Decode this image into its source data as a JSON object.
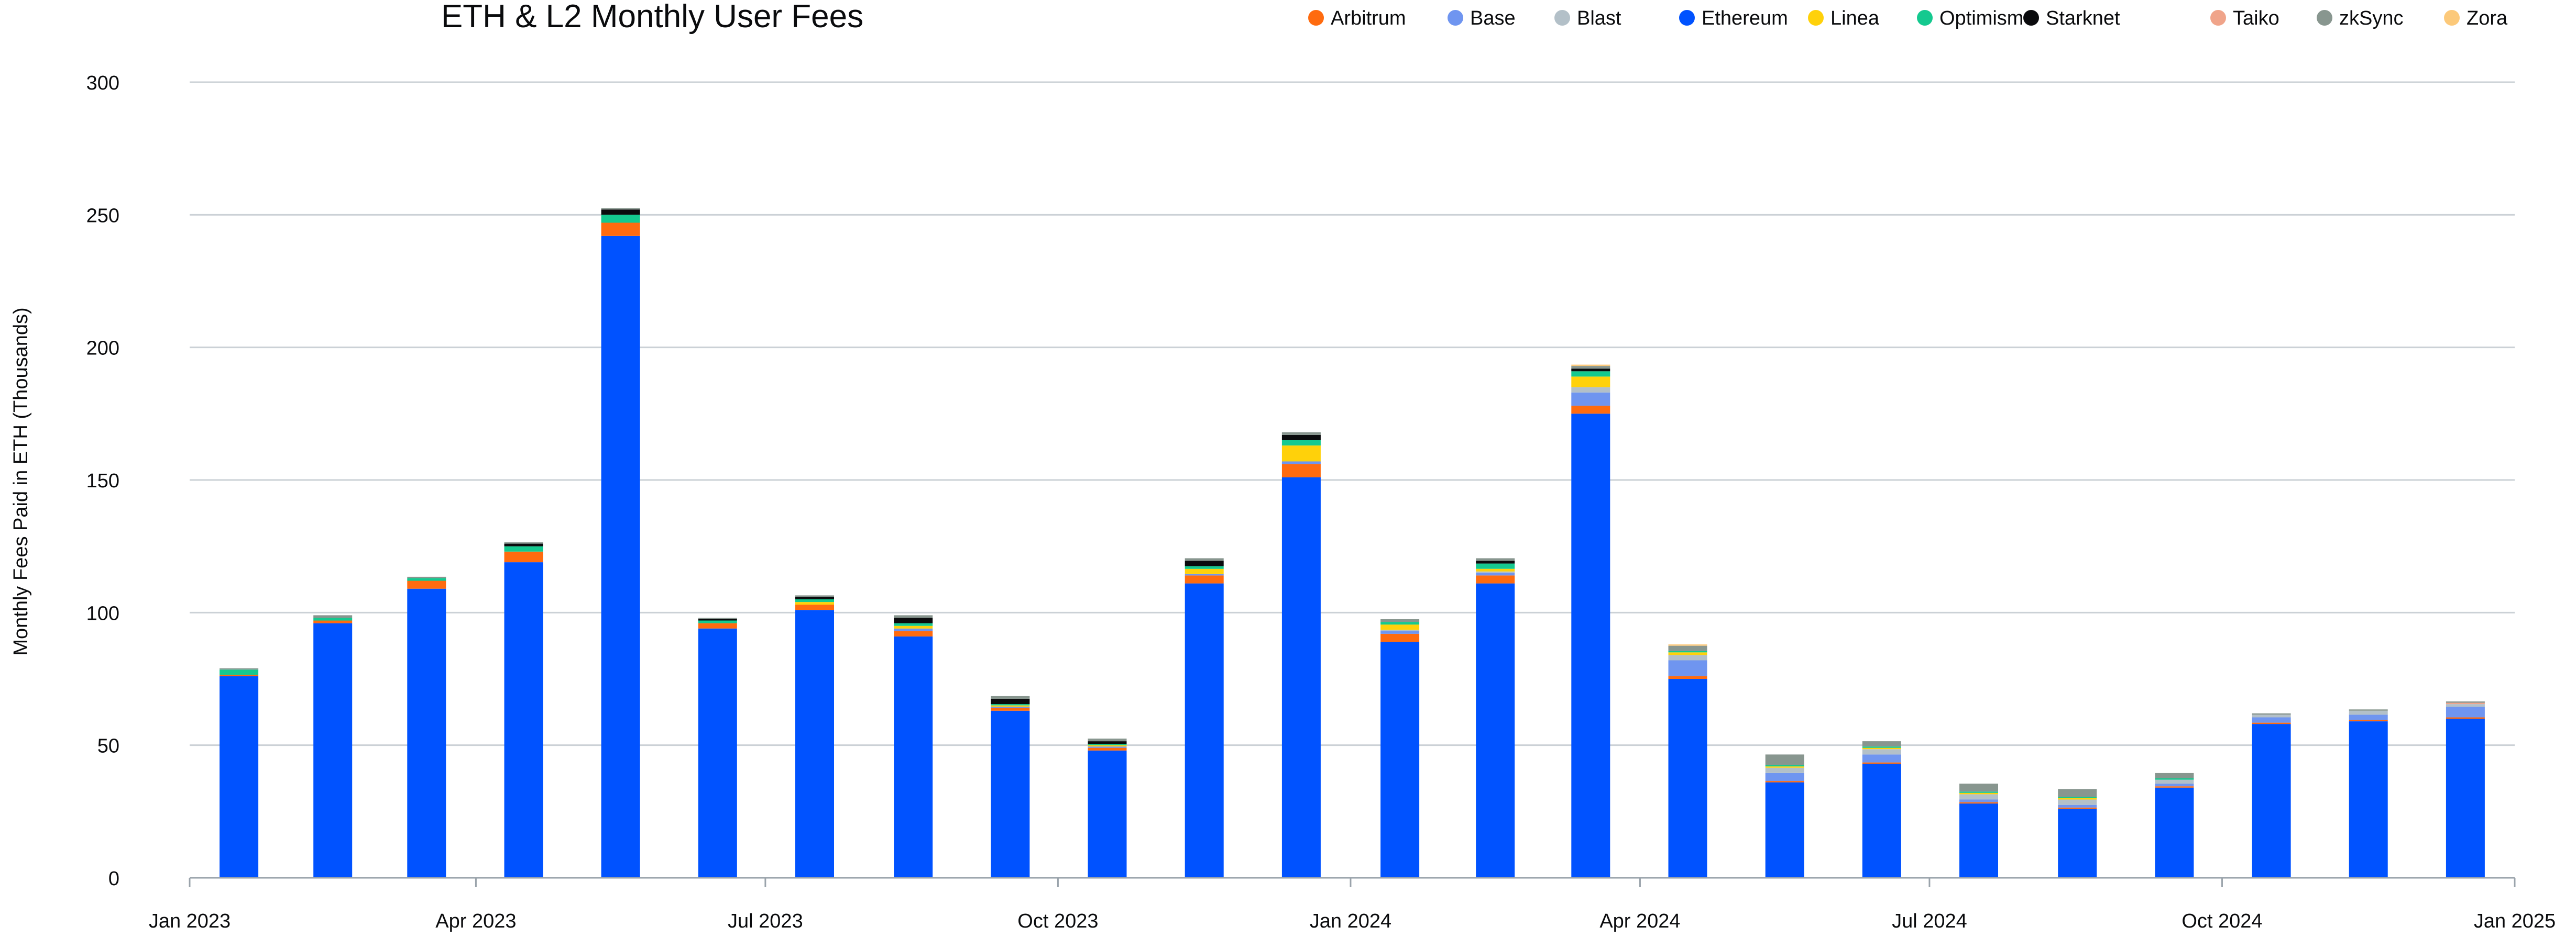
{
  "chart_data": {
    "type": "bar",
    "stacked": true,
    "title": "ETH & L2 Monthly User Fees",
    "ylabel": "Monthly Fees Paid in ETH (Thousands)",
    "xlabel": "",
    "ylim": [
      0,
      300
    ],
    "yticks": [
      0,
      50,
      100,
      150,
      200,
      250,
      300
    ],
    "xlim": [
      "2023-01-01",
      "2025-01-01"
    ],
    "xticks": [
      {
        "date": "2023-01-01",
        "label": "Jan 2023"
      },
      {
        "date": "2023-04-01",
        "label": "Apr 2023"
      },
      {
        "date": "2023-07-01",
        "label": "Jul 2023"
      },
      {
        "date": "2023-10-01",
        "label": "Oct 2023"
      },
      {
        "date": "2024-01-01",
        "label": "Jan 2024"
      },
      {
        "date": "2024-04-01",
        "label": "Apr 2024"
      },
      {
        "date": "2024-07-01",
        "label": "Jul 2024"
      },
      {
        "date": "2024-10-01",
        "label": "Oct 2024"
      },
      {
        "date": "2025-01-01",
        "label": "Jan 2025"
      }
    ],
    "grid": true,
    "legend_position": "top-right",
    "categories": [
      "2023-01",
      "2023-02",
      "2023-03",
      "2023-04",
      "2023-05",
      "2023-06",
      "2023-07",
      "2023-08",
      "2023-09",
      "2023-10",
      "2023-11",
      "2023-12",
      "2024-01",
      "2024-02",
      "2024-03",
      "2024-04",
      "2024-05",
      "2024-06",
      "2024-07",
      "2024-08",
      "2024-09",
      "2024-10",
      "2024-11",
      "2024-12"
    ],
    "series": [
      {
        "name": "Ethereum",
        "color": "#0052ff",
        "values": [
          76,
          96,
          109,
          119,
          242,
          94,
          101,
          91,
          63,
          48,
          111,
          151,
          89,
          111,
          175,
          75,
          36,
          43,
          28,
          26,
          34,
          58,
          59,
          60
        ]
      },
      {
        "name": "Arbitrum",
        "color": "#ff6b0f",
        "values": [
          0.5,
          1,
          3,
          4,
          5,
          2,
          2,
          2,
          1,
          1,
          3,
          5,
          3,
          3,
          3,
          1,
          0.5,
          0.5,
          0.5,
          0.5,
          0.5,
          0.5,
          0.5,
          0.5
        ]
      },
      {
        "name": "Base",
        "color": "#6f95f0",
        "values": [
          0,
          0,
          0,
          0,
          0,
          0,
          0,
          1,
          0.5,
          0.5,
          0.5,
          1,
          1,
          1,
          5,
          6,
          3,
          3,
          1,
          1,
          1,
          2,
          2,
          4
        ]
      },
      {
        "name": "Blast",
        "color": "#b3c0c8",
        "values": [
          0,
          0,
          0,
          0,
          0,
          0,
          0,
          0,
          0,
          0,
          0,
          0,
          0.5,
          0.5,
          2,
          2,
          2,
          2,
          2,
          2,
          1.5,
          1,
          1.5,
          1
        ]
      },
      {
        "name": "Linea",
        "color": "#ffd10a",
        "values": [
          0,
          0,
          0,
          0,
          0,
          0,
          1,
          1,
          0.5,
          0.5,
          2,
          6,
          2,
          1,
          4,
          1,
          0.5,
          0.5,
          0.5,
          0.5,
          0,
          0,
          0,
          0
        ]
      },
      {
        "name": "Optimism",
        "color": "#14c98f",
        "values": [
          2,
          1,
          1,
          2,
          3,
          1,
          1,
          1,
          0.5,
          0.5,
          1,
          2,
          1,
          2,
          2,
          0.5,
          0.5,
          0.5,
          0.5,
          0.5,
          0.5,
          0,
          0,
          0
        ]
      },
      {
        "name": "Starknet",
        "color": "#0a0b0d",
        "values": [
          0,
          0,
          0,
          1,
          2,
          0.5,
          1,
          2,
          2,
          1,
          2,
          2,
          0,
          1,
          1,
          0,
          0,
          0,
          0,
          0,
          0,
          0,
          0,
          0
        ]
      },
      {
        "name": "Taiko",
        "color": "#f0a48a",
        "values": [
          0,
          0,
          0,
          0,
          0,
          0,
          0,
          0,
          0,
          0,
          0,
          0,
          0,
          0,
          0,
          0,
          0,
          0,
          0,
          0,
          0,
          0,
          0,
          0.5
        ]
      },
      {
        "name": "zkSync",
        "color": "#88968f",
        "values": [
          0.5,
          1,
          0.5,
          0.5,
          0.5,
          0.5,
          0.5,
          1,
          1,
          1,
          1,
          1,
          1,
          1,
          1,
          2,
          4,
          2,
          3,
          3,
          2,
          0.5,
          0.5,
          0.5
        ]
      },
      {
        "name": "Zora",
        "color": "#fcc97a",
        "values": [
          0,
          0,
          0,
          0,
          0,
          0,
          0,
          0,
          0,
          0,
          0,
          0,
          0,
          0,
          0.5,
          0.5,
          0,
          0,
          0,
          0,
          0,
          0,
          0,
          0
        ]
      }
    ],
    "legend_order": [
      "Arbitrum",
      "Base",
      "Blast",
      "Ethereum",
      "Linea",
      "Optimism",
      "Starknet",
      "Taiko",
      "zkSync",
      "Zora"
    ],
    "stack_order": [
      "Ethereum",
      "Arbitrum",
      "Base",
      "Blast",
      "Linea",
      "Optimism",
      "Starknet",
      "Taiko",
      "zkSync",
      "Zora"
    ]
  },
  "style": {
    "grid_color": "#cbd1d6",
    "axis_color": "#9aa3ab",
    "text_color": "#0a0b0d"
  }
}
